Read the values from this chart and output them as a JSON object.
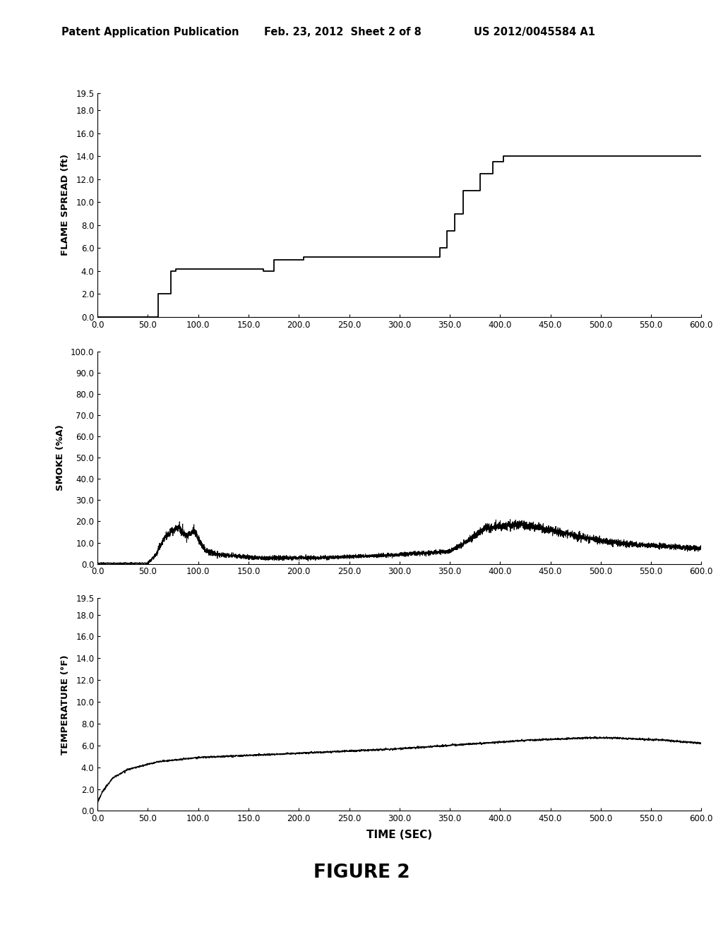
{
  "header_left": "Patent Application Publication",
  "header_mid": "Feb. 23, 2012  Sheet 2 of 8",
  "header_right": "US 2012/0045584 A1",
  "figure_label": "FIGURE 2",
  "xlim": [
    0,
    600
  ],
  "xticks": [
    0.0,
    50.0,
    100.0,
    150.0,
    200.0,
    250.0,
    300.0,
    350.0,
    400.0,
    450.0,
    500.0,
    550.0,
    600.0
  ],
  "xlabel": "TIME (SEC)",
  "plot1": {
    "ylabel": "FLAME SPREAD (ft)",
    "yticks": [
      0.0,
      2.0,
      4.0,
      6.0,
      8.0,
      10.0,
      12.0,
      14.0,
      16.0,
      18.0,
      19.5
    ],
    "ylim": [
      0,
      19.5
    ]
  },
  "plot2": {
    "ylabel": "SMOKE (%A)",
    "yticks": [
      0.0,
      10.0,
      20.0,
      30.0,
      40.0,
      50.0,
      60.0,
      70.0,
      80.0,
      90.0,
      100.0
    ],
    "ylim": [
      0,
      100
    ]
  },
  "plot3": {
    "ylabel": "TEMPERATURE (°F)",
    "yticks": [
      0.0,
      2.0,
      4.0,
      6.0,
      8.0,
      10.0,
      12.0,
      14.0,
      16.0,
      18.0,
      19.5
    ],
    "ylim": [
      0,
      19.5
    ]
  },
  "background_color": "#ffffff",
  "line_color": "#000000",
  "text_color": "#000000"
}
